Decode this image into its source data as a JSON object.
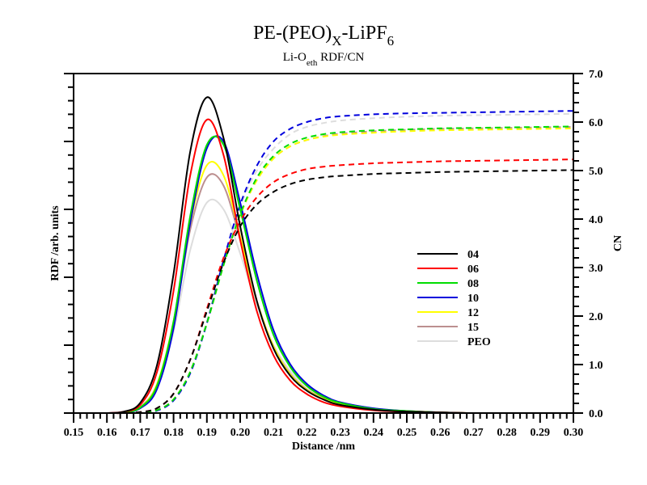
{
  "chart_data": {
    "type": "line",
    "title": {
      "main": "PE-(PEO)",
      "main_sub": "X",
      "main_tail": "-LiPF",
      "main_tail_sub": "6"
    },
    "subtitle": {
      "pre": "Li-O",
      "sub": "eth",
      "post": " RDF/CN"
    },
    "xlabel": "Distance /nm",
    "ylabel_left": "RDF /arb. units",
    "ylabel_right": "CN",
    "xlim": [
      0.15,
      0.3
    ],
    "ylim_left": [
      0,
      5
    ],
    "ylim_right": [
      0,
      7
    ],
    "x_ticks": [
      "0.15",
      "0.16",
      "0.17",
      "0.18",
      "0.19",
      "0.20",
      "0.21",
      "0.22",
      "0.23",
      "0.24",
      "0.25",
      "0.26",
      "0.27",
      "0.28",
      "0.29",
      "0.30"
    ],
    "y_right_ticks": [
      "0.0",
      "1.0",
      "2.0",
      "3.0",
      "4.0",
      "5.0",
      "6.0",
      "7.0"
    ],
    "legend_position": "center-right",
    "x": [
      0.16,
      0.165,
      0.17,
      0.175,
      0.18,
      0.185,
      0.19,
      0.195,
      0.2,
      0.205,
      0.21,
      0.215,
      0.22,
      0.225,
      0.23,
      0.24,
      0.25,
      0.26,
      0.27,
      0.28,
      0.29,
      0.3
    ],
    "series": [
      {
        "name": "04",
        "color": "#000000",
        "rdf": [
          0.0,
          0.02,
          0.15,
          0.7,
          2.05,
          3.85,
          4.65,
          4.05,
          2.75,
          1.65,
          0.95,
          0.55,
          0.33,
          0.2,
          0.12,
          0.05,
          0.02,
          0.01,
          0.0,
          0.0,
          0.0,
          0.0
        ],
        "cn": [
          0.0,
          0.0,
          0.02,
          0.1,
          0.4,
          1.1,
          2.1,
          3.1,
          3.85,
          4.3,
          4.56,
          4.72,
          4.81,
          4.86,
          4.89,
          4.93,
          4.95,
          4.97,
          4.98,
          4.99,
          5.0,
          5.01
        ]
      },
      {
        "name": "06",
        "color": "#ff0000",
        "rdf": [
          0.0,
          0.02,
          0.12,
          0.6,
          1.8,
          3.5,
          4.32,
          3.8,
          2.55,
          1.5,
          0.85,
          0.48,
          0.28,
          0.16,
          0.1,
          0.04,
          0.02,
          0.01,
          0.0,
          0.0,
          0.0,
          0.0
        ],
        "cn": [
          0.0,
          0.0,
          0.02,
          0.1,
          0.4,
          1.1,
          2.15,
          3.2,
          3.95,
          4.45,
          4.76,
          4.93,
          5.03,
          5.08,
          5.11,
          5.15,
          5.17,
          5.19,
          5.2,
          5.21,
          5.22,
          5.23
        ]
      },
      {
        "name": "08",
        "color": "#00dd00",
        "rdf": [
          0.0,
          0.01,
          0.08,
          0.4,
          1.35,
          2.9,
          3.95,
          3.95,
          3.0,
          1.95,
          1.15,
          0.68,
          0.4,
          0.24,
          0.15,
          0.06,
          0.03,
          0.01,
          0.0,
          0.0,
          0.0,
          0.0
        ],
        "cn": [
          0.0,
          0.0,
          0.01,
          0.06,
          0.28,
          0.85,
          1.85,
          3.05,
          4.1,
          4.85,
          5.3,
          5.55,
          5.68,
          5.75,
          5.79,
          5.83,
          5.85,
          5.87,
          5.88,
          5.89,
          5.9,
          5.91
        ]
      },
      {
        "name": "10",
        "color": "#0000dd",
        "rdf": [
          0.0,
          0.01,
          0.07,
          0.35,
          1.25,
          2.8,
          3.9,
          4.0,
          3.1,
          2.05,
          1.22,
          0.72,
          0.43,
          0.26,
          0.16,
          0.07,
          0.03,
          0.01,
          0.0,
          0.0,
          0.0,
          0.0
        ],
        "cn": [
          0.0,
          0.0,
          0.01,
          0.05,
          0.26,
          0.82,
          1.85,
          3.15,
          4.3,
          5.1,
          5.6,
          5.86,
          6.0,
          6.08,
          6.12,
          6.16,
          6.18,
          6.19,
          6.2,
          6.21,
          6.22,
          6.23
        ]
      },
      {
        "name": "12",
        "color": "#ffff00",
        "rdf": [
          0.0,
          0.01,
          0.08,
          0.42,
          1.35,
          2.8,
          3.65,
          3.5,
          2.6,
          1.65,
          0.98,
          0.57,
          0.34,
          0.21,
          0.13,
          0.05,
          0.02,
          0.01,
          0.0,
          0.0,
          0.0,
          0.0
        ],
        "cn": [
          0.0,
          0.0,
          0.01,
          0.06,
          0.28,
          0.85,
          1.85,
          3.05,
          4.08,
          4.8,
          5.25,
          5.5,
          5.63,
          5.7,
          5.74,
          5.78,
          5.81,
          5.83,
          5.84,
          5.85,
          5.86,
          5.87
        ]
      },
      {
        "name": "15",
        "color": "#bc8f8f",
        "rdf": [
          0.0,
          0.01,
          0.09,
          0.42,
          1.3,
          2.7,
          3.47,
          3.35,
          2.55,
          1.65,
          0.98,
          0.58,
          0.35,
          0.22,
          0.14,
          0.06,
          0.03,
          0.01,
          0.0,
          0.0,
          0.0,
          0.0
        ],
        "cn": [
          0.0,
          0.0,
          0.01,
          0.06,
          0.28,
          0.85,
          1.85,
          3.05,
          4.08,
          4.8,
          5.25,
          5.5,
          5.63,
          5.71,
          5.76,
          5.81,
          5.84,
          5.86,
          5.87,
          5.88,
          5.89,
          5.9
        ]
      },
      {
        "name": "PEO",
        "color": "#dddddd",
        "rdf": [
          0.0,
          0.01,
          0.08,
          0.4,
          1.2,
          2.4,
          3.1,
          3.0,
          2.35,
          1.6,
          1.0,
          0.62,
          0.39,
          0.25,
          0.16,
          0.07,
          0.03,
          0.01,
          0.0,
          0.0,
          0.0,
          0.0
        ],
        "cn": [
          0.0,
          0.0,
          0.01,
          0.06,
          0.28,
          0.85,
          1.9,
          3.15,
          4.25,
          5.0,
          5.45,
          5.75,
          5.9,
          5.98,
          6.03,
          6.08,
          6.11,
          6.13,
          6.14,
          6.15,
          6.16,
          6.17
        ]
      }
    ]
  }
}
